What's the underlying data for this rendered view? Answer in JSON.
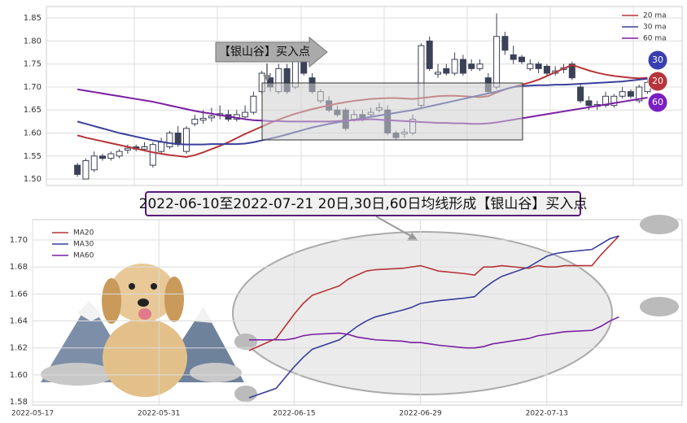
{
  "chart_data": [
    {
      "type": "candlestick",
      "ylim": [
        1.486,
        1.875
      ],
      "yticks": [
        {
          "value": 1.5,
          "label": "1.50"
        },
        1.55,
        {
          "value": 1.6,
          "label": "1.60"
        },
        1.65,
        {
          "value": 1.7,
          "label": "1.70"
        },
        1.75,
        {
          "value": 1.8,
          "label": "1.80"
        },
        1.85
      ],
      "grid": true,
      "legend": "upper right",
      "up_color": "#ffffff",
      "down_color": "#3b4157",
      "open": [
        1.53,
        1.5,
        1.52,
        1.55,
        1.545,
        1.55,
        1.563,
        1.57,
        1.565,
        1.53,
        1.56,
        1.57,
        1.6,
        1.56,
        1.62,
        1.628,
        1.633,
        1.638,
        1.64,
        1.63,
        1.635,
        1.645,
        1.69,
        1.72,
        1.69,
        1.74,
        1.7,
        1.77,
        1.72,
        1.67,
        1.67,
        1.65,
        1.65,
        1.63,
        1.64,
        1.64,
        1.65,
        1.65,
        1.6,
        1.598,
        1.6,
        1.66,
        1.8,
        1.728,
        1.74,
        1.73,
        1.76,
        1.75,
        1.74,
        1.72,
        1.7,
        1.81,
        1.77,
        1.765,
        1.74,
        1.75,
        1.745,
        1.73,
        1.738,
        1.75,
        1.7,
        1.67,
        1.658,
        1.66,
        1.66,
        1.68,
        1.69,
        1.67,
        1.69
      ],
      "high": [
        1.535,
        1.545,
        1.56,
        1.555,
        1.56,
        1.565,
        1.575,
        1.575,
        1.58,
        1.58,
        1.59,
        1.605,
        1.615,
        1.615,
        1.64,
        1.65,
        1.655,
        1.66,
        1.65,
        1.65,
        1.66,
        1.69,
        1.735,
        1.73,
        1.75,
        1.75,
        1.78,
        1.78,
        1.73,
        1.695,
        1.68,
        1.66,
        1.655,
        1.65,
        1.65,
        1.655,
        1.665,
        1.66,
        1.605,
        1.61,
        1.64,
        1.795,
        1.81,
        1.75,
        1.75,
        1.775,
        1.77,
        1.76,
        1.76,
        1.73,
        1.86,
        1.82,
        1.79,
        1.77,
        1.76,
        1.755,
        1.75,
        1.745,
        1.75,
        1.755,
        1.705,
        1.68,
        1.67,
        1.69,
        1.685,
        1.7,
        1.695,
        1.705,
        1.715
      ],
      "low": [
        1.505,
        1.5,
        1.515,
        1.54,
        1.54,
        1.545,
        1.555,
        1.56,
        1.56,
        1.525,
        1.555,
        1.565,
        1.57,
        1.555,
        1.615,
        1.62,
        1.625,
        1.63,
        1.625,
        1.625,
        1.63,
        1.64,
        1.685,
        1.69,
        1.685,
        1.685,
        1.695,
        1.725,
        1.685,
        1.665,
        1.645,
        1.635,
        1.605,
        1.625,
        1.625,
        1.635,
        1.645,
        1.595,
        1.585,
        1.59,
        1.595,
        1.655,
        1.735,
        1.72,
        1.725,
        1.725,
        1.725,
        1.735,
        1.735,
        1.685,
        1.695,
        1.77,
        1.75,
        1.75,
        1.735,
        1.73,
        1.725,
        1.725,
        1.73,
        1.715,
        1.665,
        1.65,
        1.65,
        1.655,
        1.655,
        1.675,
        1.675,
        1.665,
        1.685
      ],
      "close": [
        1.51,
        1.54,
        1.55,
        1.545,
        1.555,
        1.56,
        1.567,
        1.565,
        1.57,
        1.575,
        1.58,
        1.6,
        1.575,
        1.61,
        1.63,
        1.632,
        1.637,
        1.642,
        1.63,
        1.64,
        1.645,
        1.68,
        1.73,
        1.7,
        1.74,
        1.69,
        1.77,
        1.73,
        1.69,
        1.69,
        1.65,
        1.64,
        1.61,
        1.64,
        1.63,
        1.645,
        1.655,
        1.6,
        1.59,
        1.602,
        1.63,
        1.79,
        1.74,
        1.732,
        1.73,
        1.76,
        1.73,
        1.74,
        1.75,
        1.69,
        1.81,
        1.78,
        1.76,
        1.755,
        1.75,
        1.74,
        1.73,
        1.735,
        1.742,
        1.72,
        1.67,
        1.66,
        1.662,
        1.68,
        1.68,
        1.69,
        1.68,
        1.7,
        1.71
      ],
      "series": [
        {
          "name": "20 ma",
          "color": "#b5353a",
          "values": [
            1.595,
            1.59,
            1.586,
            1.582,
            1.578,
            1.574,
            1.57,
            1.566,
            1.562,
            1.558,
            1.555,
            1.552,
            1.55,
            1.548,
            1.552,
            1.558,
            1.565,
            1.572,
            1.58,
            1.589,
            1.598,
            1.606,
            1.614,
            1.622,
            1.629,
            1.636,
            1.642,
            1.647,
            1.652,
            1.656,
            1.66,
            1.664,
            1.667,
            1.67,
            1.672,
            1.674,
            1.675,
            1.676,
            1.676,
            1.675,
            1.674,
            1.676,
            1.678,
            1.68,
            1.681,
            1.681,
            1.68,
            1.679,
            1.678,
            1.68,
            1.688,
            1.695,
            1.7,
            1.705,
            1.71,
            1.716,
            1.724,
            1.732,
            1.74,
            1.748,
            1.742,
            1.736,
            1.731,
            1.727,
            1.724,
            1.722,
            1.72,
            1.719,
            1.72
          ]
        },
        {
          "name": "30 ma",
          "color": "#3a3f9a",
          "values": [
            1.625,
            1.62,
            1.615,
            1.61,
            1.605,
            1.6,
            1.596,
            1.592,
            1.588,
            1.584,
            1.581,
            1.578,
            1.576,
            1.575,
            1.575,
            1.575,
            1.576,
            1.576,
            1.576,
            1.576,
            1.577,
            1.58,
            1.584,
            1.588,
            1.592,
            1.597,
            1.602,
            1.607,
            1.612,
            1.616,
            1.62,
            1.623,
            1.626,
            1.629,
            1.632,
            1.635,
            1.638,
            1.641,
            1.644,
            1.647,
            1.65,
            1.654,
            1.658,
            1.662,
            1.666,
            1.67,
            1.674,
            1.678,
            1.682,
            1.686,
            1.69,
            1.695,
            1.7,
            1.702,
            1.703,
            1.704,
            1.704,
            1.705,
            1.705,
            1.706,
            1.707,
            1.708,
            1.709,
            1.71,
            1.711,
            1.712,
            1.714,
            1.716,
            1.718
          ]
        },
        {
          "name": "60 ma",
          "color": "#7a1fa2",
          "values": [
            1.695,
            1.692,
            1.689,
            1.686,
            1.683,
            1.68,
            1.677,
            1.674,
            1.671,
            1.668,
            1.664,
            1.66,
            1.656,
            1.652,
            1.648,
            1.645,
            1.642,
            1.639,
            1.636,
            1.633,
            1.63,
            1.628,
            1.627,
            1.626,
            1.626,
            1.625,
            1.625,
            1.625,
            1.625,
            1.625,
            1.625,
            1.626,
            1.627,
            1.628,
            1.629,
            1.63,
            1.629,
            1.628,
            1.627,
            1.626,
            1.625,
            1.624,
            1.623,
            1.622,
            1.622,
            1.621,
            1.621,
            1.62,
            1.62,
            1.621,
            1.623,
            1.626,
            1.629,
            1.632,
            1.635,
            1.638,
            1.641,
            1.644,
            1.647,
            1.65,
            1.653,
            1.656,
            1.659,
            1.662,
            1.665,
            1.668,
            1.671,
            1.674,
            1.677
          ]
        }
      ],
      "annotation": "【银山谷】买入点",
      "badges": [
        {
          "label": "30",
          "color": "#3a3fb0"
        },
        {
          "label": "20",
          "color": "#b5353a"
        },
        {
          "label": "60",
          "color": "#7a1fc2"
        }
      ]
    },
    {
      "type": "line",
      "title": "2022-06-10至2022-07-21 20日,30日,60日均线形成【银山谷】买入点",
      "xlim": [
        "2022-05-17",
        "2022-07-28"
      ],
      "xticks": [
        "2022-05-17",
        "2022-05-31",
        "2022-06-15",
        "2022-06-29",
        "2022-07-13"
      ],
      "ylim": [
        1.5776,
        1.7151
      ],
      "yticks": [
        1.58,
        {
          "value": 1.6,
          "label": "1.60"
        },
        1.62,
        1.64,
        1.66,
        1.68,
        {
          "value": 1.7,
          "label": "1.70"
        }
      ],
      "grid": true,
      "legend": "upper left",
      "x": [
        "2022-06-10",
        "2022-06-13",
        "2022-06-14",
        "2022-06-15",
        "2022-06-16",
        "2022-06-17",
        "2022-06-20",
        "2022-06-21",
        "2022-06-22",
        "2022-06-23",
        "2022-06-24",
        "2022-06-27",
        "2022-06-28",
        "2022-06-29",
        "2022-06-30",
        "2022-07-01",
        "2022-07-04",
        "2022-07-05",
        "2022-07-06",
        "2022-07-07",
        "2022-07-08",
        "2022-07-11",
        "2022-07-12",
        "2022-07-13",
        "2022-07-14",
        "2022-07-15",
        "2022-07-18",
        "2022-07-19",
        "2022-07-20",
        "2022-07-21"
      ],
      "series": [
        {
          "name": "MA20",
          "color": "#b5353a",
          "values": [
            1.618,
            1.627,
            1.636,
            1.645,
            1.653,
            1.659,
            1.666,
            1.671,
            1.674,
            1.677,
            1.678,
            1.679,
            1.68,
            1.681,
            1.679,
            1.677,
            1.675,
            1.674,
            1.68,
            1.68,
            1.681,
            1.679,
            1.681,
            1.68,
            1.68,
            1.681,
            1.681,
            1.689,
            1.696,
            1.703
          ]
        },
        {
          "name": "MA30",
          "color": "#3a3f9a",
          "values": [
            1.583,
            1.59,
            1.598,
            1.606,
            1.613,
            1.619,
            1.626,
            1.631,
            1.636,
            1.64,
            1.643,
            1.648,
            1.65,
            1.653,
            1.654,
            1.655,
            1.657,
            1.658,
            1.664,
            1.669,
            1.673,
            1.68,
            1.684,
            1.688,
            1.69,
            1.691,
            1.693,
            1.697,
            1.701,
            1.703
          ]
        },
        {
          "name": "MA60",
          "color": "#7a1fa2",
          "values": [
            1.626,
            1.626,
            1.626,
            1.627,
            1.629,
            1.63,
            1.631,
            1.63,
            1.628,
            1.627,
            1.626,
            1.625,
            1.624,
            1.624,
            1.623,
            1.622,
            1.62,
            1.62,
            1.621,
            1.623,
            1.624,
            1.627,
            1.629,
            1.63,
            1.631,
            1.632,
            1.633,
            1.636,
            1.64,
            1.643
          ]
        }
      ]
    }
  ]
}
